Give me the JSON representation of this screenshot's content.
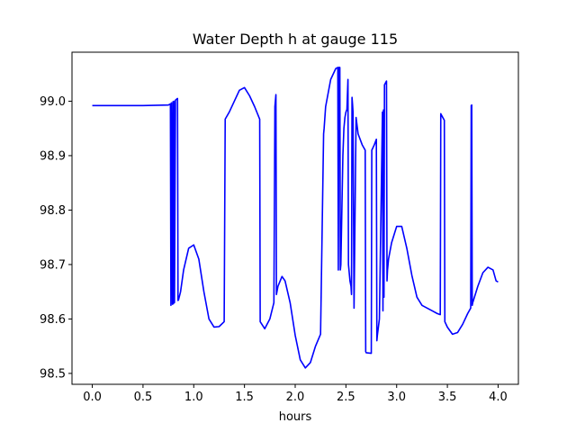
{
  "chart_data": {
    "type": "line",
    "title": "Water Depth h at gauge 115",
    "xlabel": "hours",
    "ylabel": "",
    "xlim": [
      -0.2,
      4.2
    ],
    "ylim": [
      98.48,
      99.09
    ],
    "xticks": [
      0.0,
      0.5,
      1.0,
      1.5,
      2.0,
      2.5,
      3.0,
      3.5,
      4.0
    ],
    "xtick_labels": [
      "0.0",
      "0.5",
      "1.0",
      "1.5",
      "2.0",
      "2.5",
      "3.0",
      "3.5",
      "4.0"
    ],
    "yticks": [
      98.5,
      98.6,
      98.7,
      98.8,
      98.9,
      99.0
    ],
    "ytick_labels": [
      "98.5",
      "98.6",
      "98.7",
      "98.8",
      "98.9",
      "99.0"
    ],
    "grid": false,
    "series": [
      {
        "color": "#0000ff",
        "x": [
          0.0,
          0.5,
          0.75,
          0.77,
          0.775,
          0.78,
          0.79,
          0.795,
          0.8,
          0.805,
          0.81,
          0.82,
          0.84,
          0.845,
          0.85,
          0.87,
          0.9,
          0.95,
          1.0,
          1.05,
          1.1,
          1.15,
          1.2,
          1.25,
          1.3,
          1.31,
          1.35,
          1.4,
          1.45,
          1.5,
          1.55,
          1.6,
          1.65,
          1.655,
          1.7,
          1.75,
          1.79,
          1.8,
          1.81,
          1.815,
          1.83,
          1.87,
          1.9,
          1.95,
          2.0,
          2.05,
          2.1,
          2.15,
          2.2,
          2.25,
          2.28,
          2.285,
          2.3,
          2.35,
          2.4,
          2.42,
          2.425,
          2.43,
          2.44,
          2.445,
          2.45,
          2.46,
          2.47,
          2.48,
          2.49,
          2.5,
          2.51,
          2.52,
          2.525,
          2.53,
          2.535,
          2.54,
          2.55,
          2.555,
          2.56,
          2.565,
          2.57,
          2.58,
          2.6,
          2.62,
          2.66,
          2.69,
          2.695,
          2.7,
          2.75,
          2.755,
          2.78,
          2.8,
          2.805,
          2.81,
          2.83,
          2.86,
          2.865,
          2.87,
          2.875,
          2.88,
          2.9,
          2.905,
          2.91,
          2.915,
          2.92,
          2.95,
          3.0,
          3.05,
          3.1,
          3.15,
          3.2,
          3.25,
          3.3,
          3.35,
          3.4,
          3.43,
          3.435,
          3.44,
          3.47,
          3.475,
          3.5,
          3.55,
          3.6,
          3.65,
          3.7,
          3.73,
          3.735,
          3.74,
          3.745,
          3.75,
          3.8,
          3.85,
          3.9,
          3.95,
          3.98,
          4.0
        ],
        "y": [
          98.992,
          98.992,
          98.993,
          98.995,
          98.625,
          98.997,
          98.627,
          98.999,
          98.628,
          99.0,
          98.63,
          99.002,
          99.005,
          98.634,
          98.635,
          98.65,
          98.69,
          98.73,
          98.736,
          98.71,
          98.65,
          98.6,
          98.585,
          98.586,
          98.595,
          98.967,
          98.98,
          99.0,
          99.02,
          99.025,
          99.01,
          98.99,
          98.967,
          98.595,
          98.582,
          98.6,
          98.63,
          98.99,
          99.012,
          98.645,
          98.66,
          98.678,
          98.67,
          98.63,
          98.57,
          98.525,
          98.51,
          98.52,
          98.55,
          98.572,
          98.94,
          98.95,
          98.99,
          99.04,
          99.06,
          99.062,
          98.69,
          99.062,
          99.062,
          98.69,
          98.7,
          98.8,
          98.9,
          98.95,
          98.97,
          98.98,
          98.985,
          99.04,
          98.7,
          98.69,
          98.68,
          98.67,
          98.66,
          98.645,
          99.007,
          98.995,
          98.98,
          98.62,
          98.97,
          98.94,
          98.92,
          98.91,
          98.54,
          98.538,
          98.537,
          98.91,
          98.92,
          98.93,
          98.56,
          98.57,
          98.6,
          98.98,
          98.615,
          98.984,
          98.64,
          99.03,
          99.037,
          98.67,
          98.69,
          98.7,
          98.71,
          98.74,
          98.77,
          98.77,
          98.73,
          98.68,
          98.64,
          98.625,
          98.62,
          98.615,
          98.61,
          98.608,
          98.977,
          98.975,
          98.965,
          98.595,
          98.585,
          98.572,
          98.575,
          98.59,
          98.61,
          98.62,
          98.992,
          98.993,
          98.625,
          98.63,
          98.66,
          98.685,
          98.695,
          98.69,
          98.67,
          98.668
        ]
      }
    ]
  }
}
